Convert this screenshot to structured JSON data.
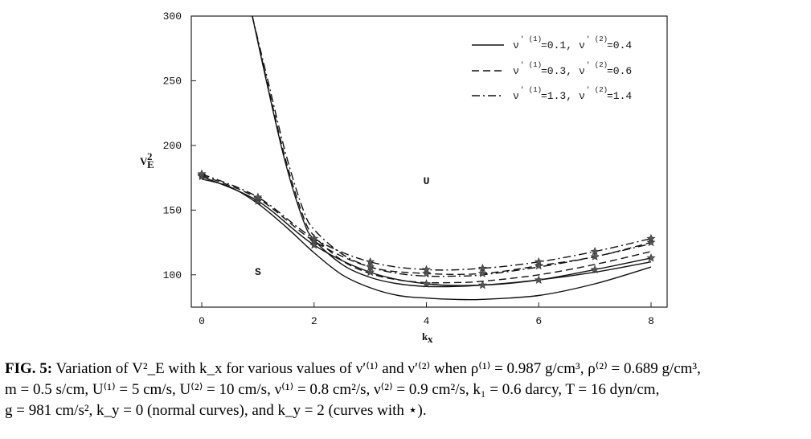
{
  "chart_data": {
    "type": "line",
    "xlabel": "k",
    "xlabel_sub": "x",
    "ylabel": "V",
    "ylabel_sup": "2",
    "ylabel_sub": "E",
    "xlim": [
      0,
      8
    ],
    "ylim": [
      75,
      300
    ],
    "xticks": [
      0,
      2,
      4,
      6,
      8
    ],
    "yticks": [
      100,
      150,
      200,
      250,
      300
    ],
    "grid": false,
    "legend_position": "top-right",
    "annotations": [
      {
        "text": "U",
        "x": 4.0,
        "y": 170
      },
      {
        "text": "S",
        "x": 1.0,
        "y": 100
      }
    ],
    "legend": [
      {
        "style": "solid",
        "parts": [
          "ν",
          "' (1)",
          "=0.1,",
          "ν",
          "' (2)",
          "=0.4"
        ]
      },
      {
        "style": "dashed",
        "parts": [
          "ν",
          "' (1)",
          "=0.3,",
          "ν",
          "' (2)",
          "=0.6"
        ]
      },
      {
        "style": "dashdot",
        "parts": [
          "ν",
          "' (1)",
          "=1.3,",
          "ν",
          "' (2)",
          "=1.4"
        ]
      }
    ],
    "series": [
      {
        "style": "solid",
        "marker": "none",
        "x": [
          0.9,
          1.2,
          1.5,
          1.8,
          2.0,
          2.5,
          3.0,
          3.5,
          4.0,
          4.5,
          5.0,
          6.0,
          7.0,
          8.0
        ],
        "y": [
          300,
          240,
          185,
          143,
          127,
          108,
          98,
          93,
          91,
          91,
          92,
          96,
          102,
          110
        ]
      },
      {
        "style": "dashed",
        "marker": "none",
        "x": [
          0.9,
          1.2,
          1.5,
          1.8,
          2.0,
          2.5,
          3.0,
          3.5,
          4.0,
          4.5,
          5.0,
          6.0,
          7.0,
          8.0
        ],
        "y": [
          300,
          242,
          188,
          146,
          130,
          111,
          101,
          96,
          94,
          94,
          95,
          100,
          108,
          118
        ]
      },
      {
        "style": "dashdot",
        "marker": "none",
        "x": [
          0.9,
          1.2,
          1.5,
          1.8,
          2.0,
          2.5,
          3.0,
          3.5,
          4.0,
          4.5,
          5.0,
          6.0,
          7.0,
          8.0
        ],
        "y": [
          300,
          246,
          193,
          151,
          135,
          116,
          106,
          101,
          99,
          99,
          100,
          106,
          114,
          124
        ]
      },
      {
        "style": "solid",
        "marker": "none",
        "x": [
          0,
          0.5,
          1.0,
          1.5,
          2.0,
          2.5,
          3.0,
          3.5,
          4.0,
          4.5,
          5.0,
          6.0,
          7.0,
          8.0
        ],
        "y": [
          174,
          168,
          155,
          137,
          117,
          100,
          90,
          84,
          82,
          81,
          81,
          84,
          93,
          106
        ]
      },
      {
        "style": "solid",
        "marker": "star",
        "x": [
          0,
          1,
          2,
          3,
          4,
          5,
          6,
          7,
          8
        ],
        "y": [
          176,
          157,
          123,
          102,
          93,
          92,
          96,
          104,
          113
        ]
      },
      {
        "style": "dashed",
        "marker": "star",
        "x": [
          0,
          1,
          2,
          3,
          4,
          5,
          6,
          7,
          8
        ],
        "y": [
          177,
          159,
          126,
          106,
          101,
          101,
          107,
          114,
          125
        ]
      },
      {
        "style": "dashdot",
        "marker": "star",
        "x": [
          0,
          1,
          2,
          3,
          4,
          5,
          6,
          7,
          8
        ],
        "y": [
          178,
          160,
          128,
          110,
          104,
          105,
          110,
          118,
          128
        ]
      }
    ]
  },
  "caption": {
    "fig_label": "FIG. 5:",
    "line1": "Variation of V²_E with k_x for various values of ν′⁽¹⁾ and ν′⁽²⁾ when ρ⁽¹⁾ = 0.987 g/cm³, ρ⁽²⁾ = 0.689 g/cm³,",
    "line2": "m = 0.5 s/cm, U⁽¹⁾ = 5 cm/s, U⁽²⁾ = 10 cm/s, ν⁽¹⁾ = 0.8 cm²/s, ν⁽²⁾ = 0.9 cm²/s, k₁ = 0.6 darcy, T = 16 dyn/cm,",
    "line3": "g = 981 cm/s², k_y = 0 (normal curves), and k_y = 2 (curves with ⋆)."
  }
}
